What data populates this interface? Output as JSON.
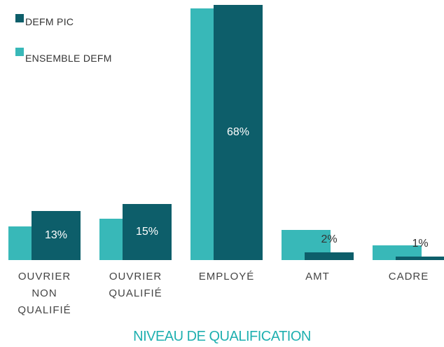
{
  "chart_data": {
    "type": "bar",
    "x_label": "NIVEAU DE QUALIFICATION",
    "categories": [
      "OUVRIER NON QUALIFIÉ",
      "OUVRIER QUALIFIÉ",
      "EMPLOYÉ",
      "AMT",
      "CADRE"
    ],
    "series": [
      {
        "name": "DEFM PIC",
        "color": "#0d5e6a",
        "values": [
          13,
          15,
          68,
          2,
          1
        ],
        "value_labels": [
          "13%",
          "15%",
          "68%",
          "2%",
          "1%"
        ]
      },
      {
        "name": "ENSEMBLE DEFM",
        "color": "#38b8b8",
        "values": [
          9,
          11,
          67,
          8,
          4
        ]
      }
    ]
  }
}
